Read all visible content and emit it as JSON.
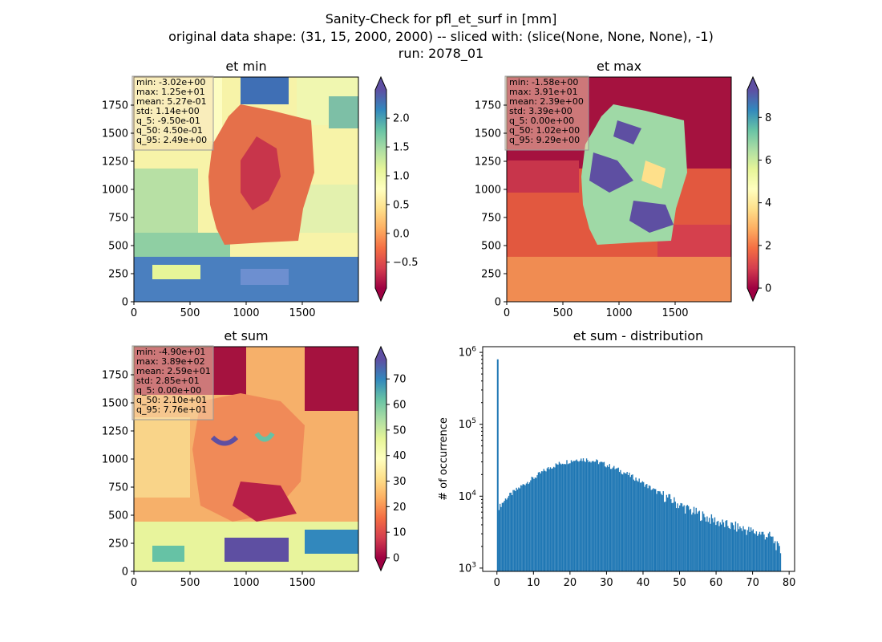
{
  "figure": {
    "suptitle_lines": [
      "Sanity-Check for pfl_et_surf in [mm]",
      "original data shape: (31, 15, 2000, 2000) -- sliced with: (slice(None, None, None), -1)",
      "run: 2078_01"
    ]
  },
  "chart_data": [
    {
      "type": "heatmap",
      "title": "et min",
      "xlim": [
        0,
        2000
      ],
      "ylim": [
        0,
        2000
      ],
      "x_ticks": [
        "0",
        "500",
        "1000",
        "1500"
      ],
      "y_ticks": [
        "0",
        "250",
        "500",
        "750",
        "1000",
        "1250",
        "1500",
        "1750"
      ],
      "colormap": "Spectral",
      "colorbar": {
        "range": [
          -0.95,
          2.49
        ],
        "ticks": [
          "−0.5",
          "0.0",
          "0.5",
          "1.0",
          "1.5",
          "2.0"
        ],
        "tick_values": [
          -0.5,
          0.0,
          0.5,
          1.0,
          1.5,
          2.0
        ],
        "extend": "both"
      },
      "stats": [
        "min: -3.02e+00",
        "max: 1.25e+01",
        "mean: 5.27e-01",
        "std: 1.14e+00",
        "q_5: -9.50e-01",
        "q_50: 4.50e-01",
        "q_95: 2.49e+00"
      ]
    },
    {
      "type": "heatmap",
      "title": "et max",
      "xlim": [
        0,
        2000
      ],
      "ylim": [
        0,
        2000
      ],
      "x_ticks": [
        "0",
        "500",
        "1000",
        "1500"
      ],
      "y_ticks": [
        "0",
        "250",
        "500",
        "750",
        "1000",
        "1250",
        "1500",
        "1750"
      ],
      "colormap": "Spectral",
      "colorbar": {
        "range": [
          0.0,
          9.29
        ],
        "ticks": [
          "0",
          "2",
          "4",
          "6",
          "8"
        ],
        "tick_values": [
          0,
          2,
          4,
          6,
          8
        ],
        "extend": "both"
      },
      "stats": [
        "min: -1.58e+00",
        "max: 3.91e+01",
        "mean: 2.39e+00",
        "std: 3.39e+00",
        "q_5: 0.00e+00",
        "q_50: 1.02e+00",
        "q_95: 9.29e+00"
      ]
    },
    {
      "type": "heatmap",
      "title": "et sum",
      "xlim": [
        0,
        2000
      ],
      "ylim": [
        0,
        2000
      ],
      "x_ticks": [
        "0",
        "500",
        "1000",
        "1500"
      ],
      "y_ticks": [
        "0",
        "250",
        "500",
        "750",
        "1000",
        "1250",
        "1500",
        "1750"
      ],
      "colormap": "Spectral",
      "colorbar": {
        "range": [
          0.0,
          77.6
        ],
        "ticks": [
          "0",
          "10",
          "20",
          "30",
          "40",
          "50",
          "60",
          "70"
        ],
        "tick_values": [
          0,
          10,
          20,
          30,
          40,
          50,
          60,
          70
        ],
        "extend": "both"
      },
      "stats": [
        "min: -4.90e+01",
        "max: 3.89e+02",
        "mean: 2.59e+01",
        "std: 2.85e+01",
        "q_5: 0.00e+00",
        "q_50: 2.10e+01",
        "q_95: 7.76e+01"
      ]
    },
    {
      "type": "bar",
      "title": "et sum - distribution",
      "ylabel": "# of occurrence",
      "yscale": "log",
      "xlim": [
        -3.9,
        81.5
      ],
      "ylim": [
        900,
        1200000
      ],
      "x_ticks": [
        0,
        10,
        20,
        30,
        40,
        50,
        60,
        70,
        80
      ],
      "y_ticks": [
        {
          "value": 1000,
          "base": "10",
          "exp": "3"
        },
        {
          "value": 10000,
          "base": "10",
          "exp": "4"
        },
        {
          "value": 100000,
          "base": "10",
          "exp": "5"
        },
        {
          "value": 1000000,
          "base": "10",
          "exp": "6"
        }
      ],
      "bar_color": "#1f77b4",
      "bin_width": 0.3,
      "bins": [
        {
          "x": 0.0,
          "count": 800000
        },
        {
          "x": 0.4,
          "count": 7000
        },
        {
          "x": 2.5,
          "count": 9500
        },
        {
          "x": 5.0,
          "count": 12000
        },
        {
          "x": 7.5,
          "count": 15000
        },
        {
          "x": 10.0,
          "count": 18000
        },
        {
          "x": 12.5,
          "count": 22000
        },
        {
          "x": 15.0,
          "count": 26000
        },
        {
          "x": 17.5,
          "count": 29000
        },
        {
          "x": 20.0,
          "count": 31000
        },
        {
          "x": 22.5,
          "count": 33000
        },
        {
          "x": 25.0,
          "count": 32000
        },
        {
          "x": 27.5,
          "count": 30000
        },
        {
          "x": 30.0,
          "count": 27000
        },
        {
          "x": 32.5,
          "count": 24000
        },
        {
          "x": 35.0,
          "count": 21000
        },
        {
          "x": 37.5,
          "count": 18000
        },
        {
          "x": 40.0,
          "count": 15000
        },
        {
          "x": 42.5,
          "count": 12500
        },
        {
          "x": 45.0,
          "count": 10500
        },
        {
          "x": 47.5,
          "count": 9000
        },
        {
          "x": 50.0,
          "count": 7500
        },
        {
          "x": 52.5,
          "count": 6500
        },
        {
          "x": 55.0,
          "count": 5700
        },
        {
          "x": 57.5,
          "count": 5000
        },
        {
          "x": 60.0,
          "count": 4500
        },
        {
          "x": 62.5,
          "count": 4000
        },
        {
          "x": 65.0,
          "count": 3800
        },
        {
          "x": 67.5,
          "count": 3500
        },
        {
          "x": 70.0,
          "count": 3200
        },
        {
          "x": 72.5,
          "count": 3000
        },
        {
          "x": 75.0,
          "count": 2700
        },
        {
          "x": 77.5,
          "count": 1700
        }
      ]
    }
  ]
}
